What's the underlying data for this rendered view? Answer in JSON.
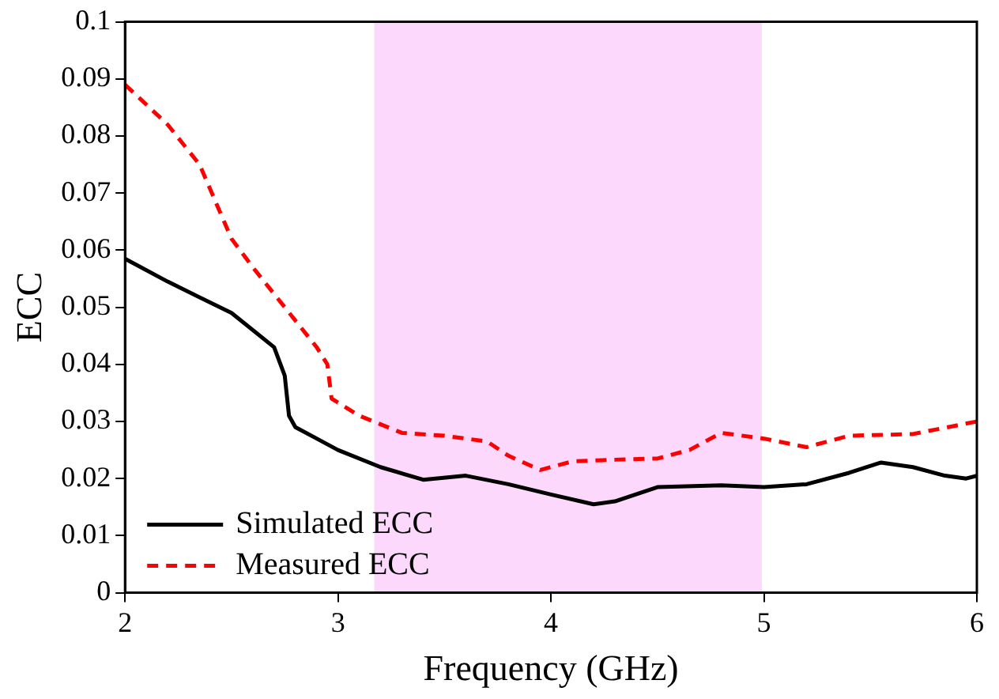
{
  "chart_data": {
    "type": "line",
    "xlabel": "Frequency (GHz)",
    "ylabel": "ECC",
    "xlim": [
      2,
      6
    ],
    "xticks": [
      2,
      3,
      4,
      5,
      6
    ],
    "ylim": [
      0,
      0.1
    ],
    "yticks": [
      0,
      0.01,
      0.02,
      0.03,
      0.04,
      0.05,
      0.06,
      0.07,
      0.08,
      0.09,
      0.1
    ],
    "grid": false,
    "legend": "bottom left",
    "line_style": "solid",
    "marker": "none",
    "bands": [
      {
        "axis": "x",
        "from": 3.17,
        "to": 4.99,
        "color": "#fcd8fc"
      }
    ],
    "series": [
      {
        "name": "Simulated ECC",
        "color": "#000000",
        "x": [
          2,
          2.2,
          2.5,
          2.7,
          2.75,
          2.77,
          2.8,
          2.9,
          3,
          3.2,
          3.4,
          3.6,
          3.8,
          4,
          4.2,
          4.3,
          4.5,
          4.8,
          5,
          5.2,
          5.4,
          5.55,
          5.7,
          5.85,
          5.95,
          6
        ],
        "values": [
          0.0585,
          0.0545,
          0.049,
          0.043,
          0.038,
          0.031,
          0.029,
          0.027,
          0.025,
          0.022,
          0.0198,
          0.0205,
          0.019,
          0.0172,
          0.0155,
          0.016,
          0.0185,
          0.0188,
          0.0185,
          0.019,
          0.021,
          0.0228,
          0.022,
          0.0205,
          0.02,
          0.0205
        ]
      },
      {
        "name": "Measured ECC",
        "color": "#ff0000",
        "line_style": "dashed",
        "x": [
          2,
          2.2,
          2.35,
          2.5,
          2.6,
          2.75,
          2.9,
          2.95,
          2.97,
          3.1,
          3.3,
          3.5,
          3.7,
          3.8,
          3.95,
          4.1,
          4.3,
          4.5,
          4.65,
          4.8,
          5,
          5.2,
          5.4,
          5.7,
          6
        ],
        "values": [
          0.089,
          0.082,
          0.075,
          0.062,
          0.057,
          0.05,
          0.043,
          0.04,
          0.034,
          0.031,
          0.028,
          0.0275,
          0.0265,
          0.024,
          0.0215,
          0.023,
          0.0233,
          0.0235,
          0.025,
          0.028,
          0.027,
          0.0255,
          0.0275,
          0.0278,
          0.03
        ]
      }
    ]
  }
}
